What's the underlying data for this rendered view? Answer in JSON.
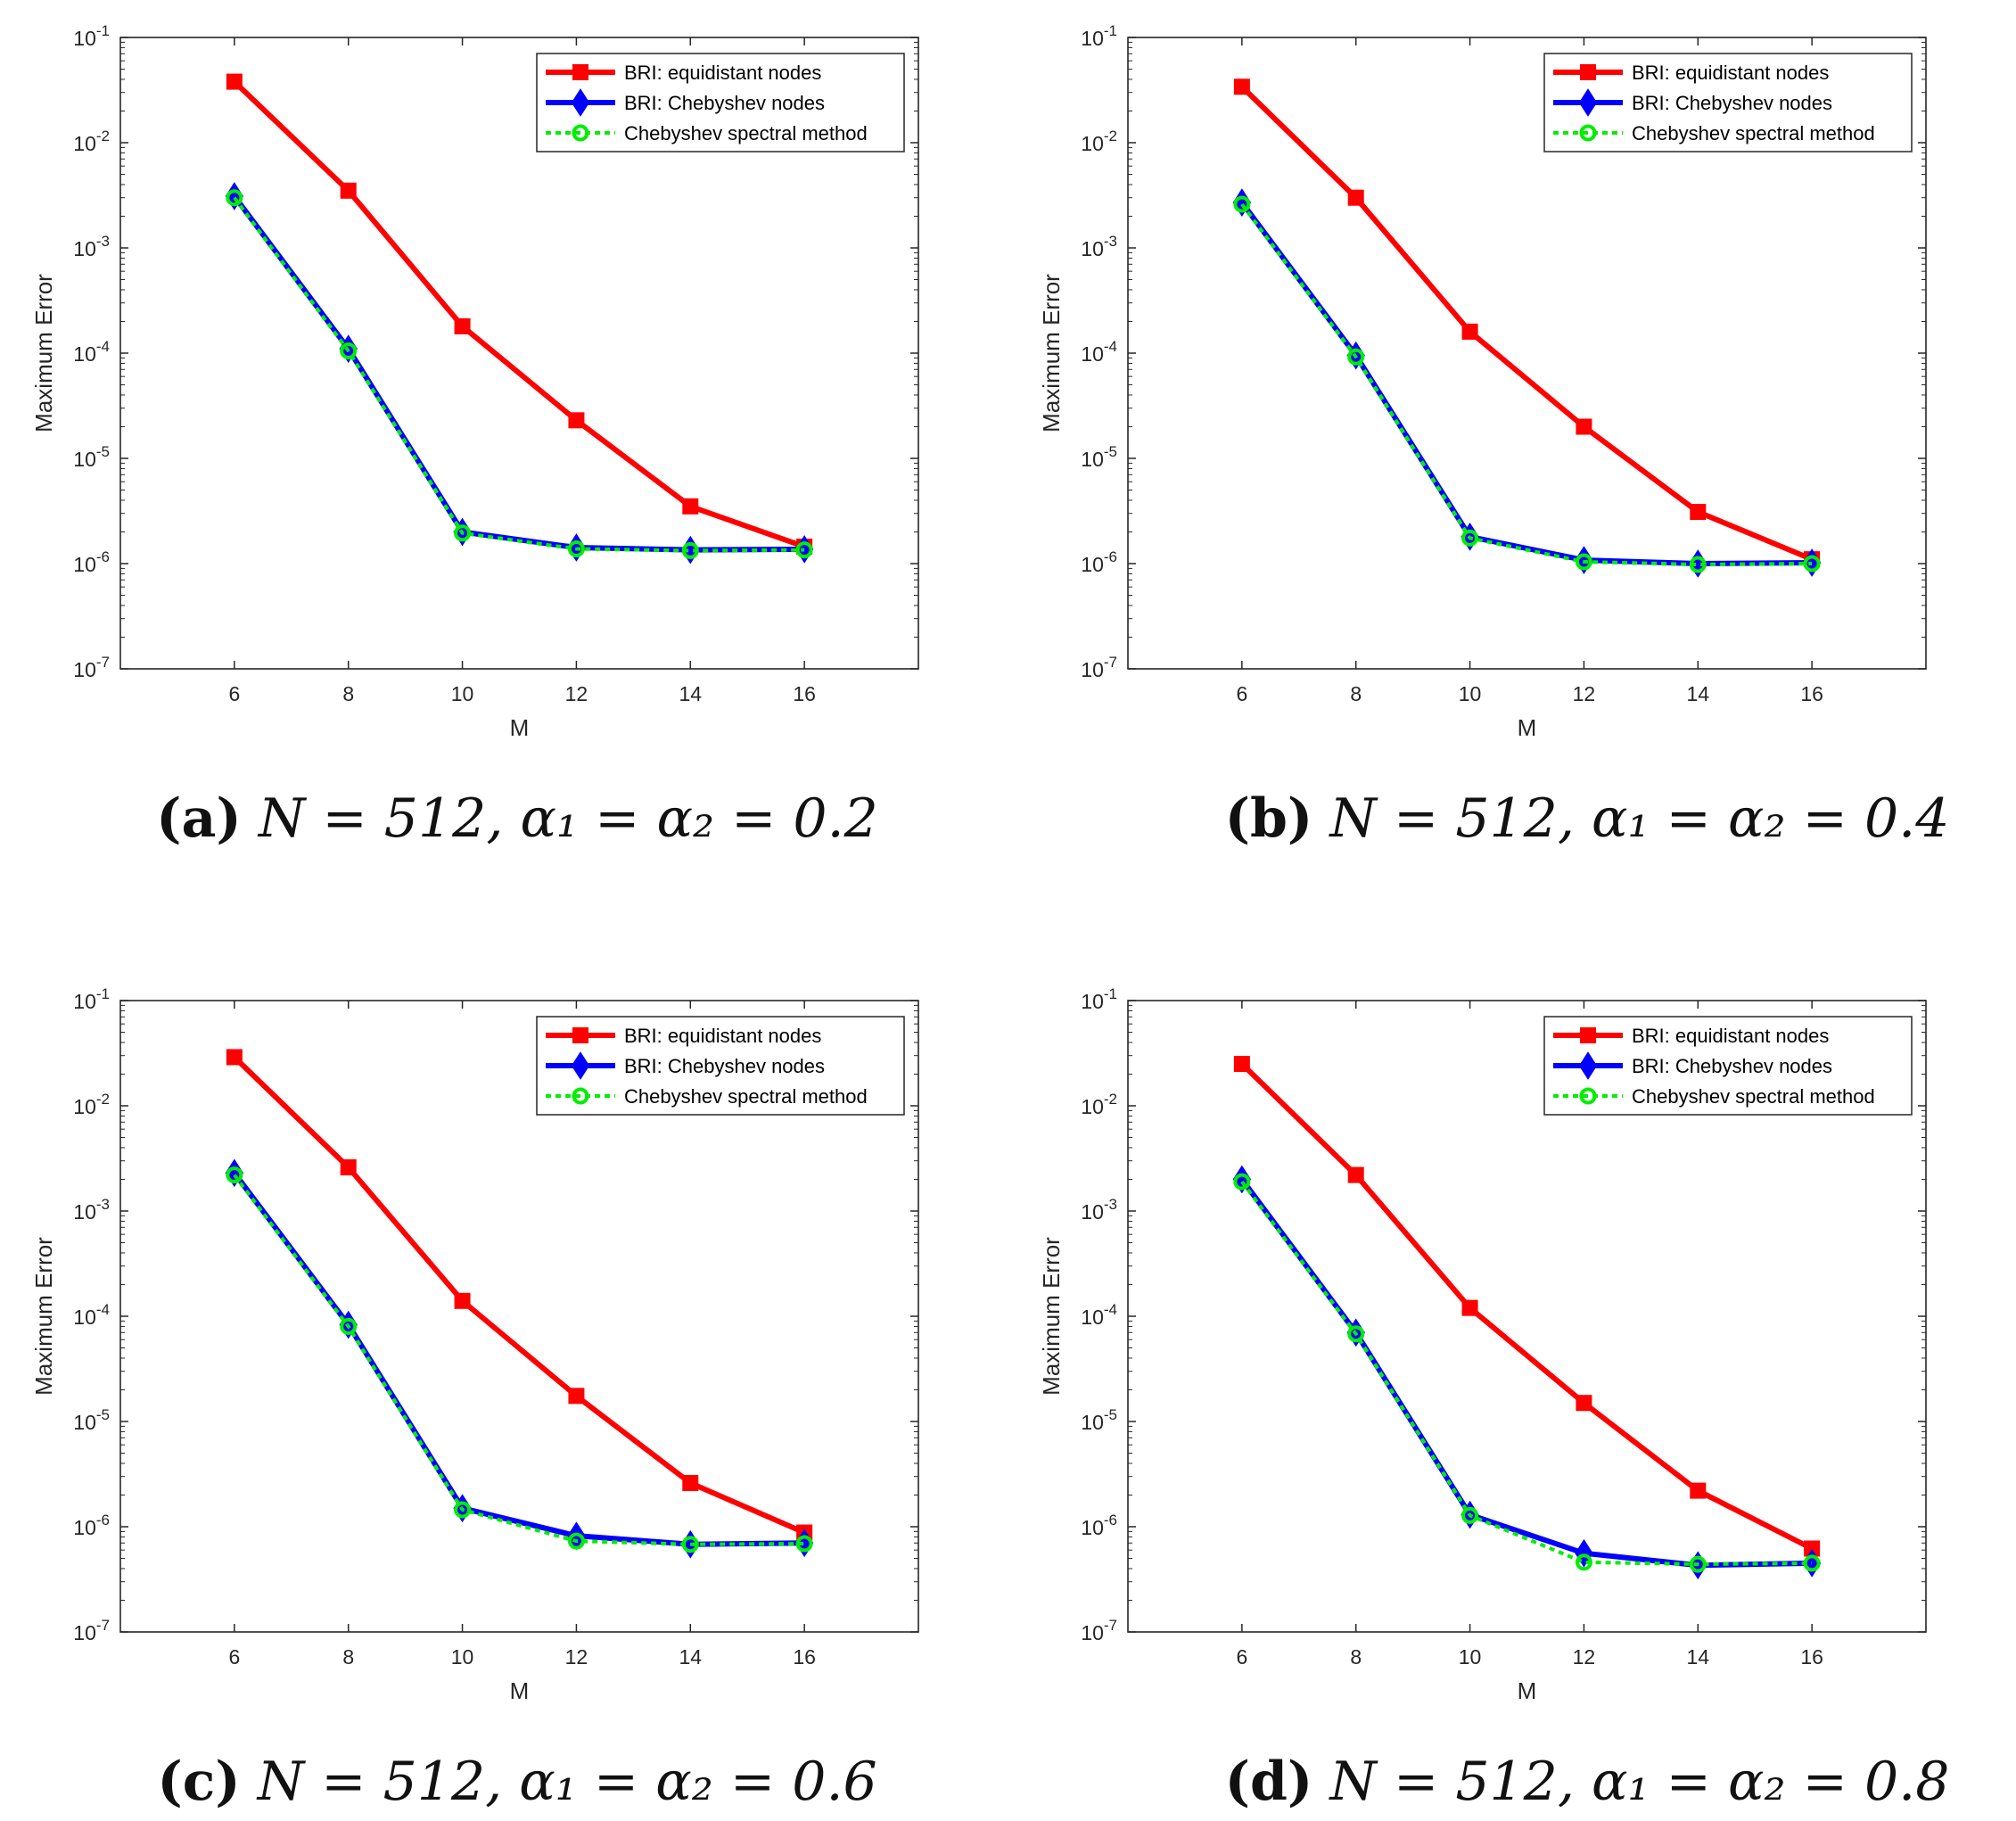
{
  "colors": {
    "equidistant": "#ff0000",
    "chebyshev_nodes": "#0000ff",
    "spectral": "#00ee00",
    "axes": "#262626"
  },
  "chart_data": [
    {
      "type": "line",
      "panel": "a",
      "caption": {
        "letter": "(a)",
        "text": "N = 512, α₁ = α₂ = 0.2"
      },
      "xlabel": "M",
      "ylabel": "Maximum Error",
      "yscale": "log",
      "xlim": [
        4,
        18
      ],
      "ylim": [
        1e-07,
        0.1
      ],
      "x": [
        6,
        8,
        10,
        12,
        14,
        16
      ],
      "xticks": [
        "6",
        "8",
        "10",
        "12",
        "14",
        "16"
      ],
      "yticks": [
        {
          "base": "10",
          "exp": "-7"
        },
        {
          "base": "10",
          "exp": "-6"
        },
        {
          "base": "10",
          "exp": "-5"
        },
        {
          "base": "10",
          "exp": "-4"
        },
        {
          "base": "10",
          "exp": "-3"
        },
        {
          "base": "10",
          "exp": "-2"
        },
        {
          "base": "10",
          "exp": "-1"
        }
      ],
      "legend_position": "top-right",
      "series": [
        {
          "name": "BRI: equidistant nodes",
          "values": [
            0.038,
            0.0035,
            0.00018,
            2.3e-05,
            3.5e-06,
            1.45e-06
          ]
        },
        {
          "name": "BRI: Chebyshev nodes",
          "values": [
            0.0031,
            0.00011,
            2e-06,
            1.42e-06,
            1.35e-06,
            1.37e-06
          ]
        },
        {
          "name": "Chebyshev spectral method",
          "values": [
            0.003,
            0.000105,
            1.95e-06,
            1.38e-06,
            1.33e-06,
            1.35e-06
          ]
        }
      ]
    },
    {
      "type": "line",
      "panel": "b",
      "caption": {
        "letter": "(b)",
        "text": "N = 512, α₁ = α₂ = 0.4"
      },
      "xlabel": "M",
      "ylabel": "Maximum Error",
      "yscale": "log",
      "xlim": [
        4,
        18
      ],
      "ylim": [
        1e-07,
        0.1
      ],
      "x": [
        6,
        8,
        10,
        12,
        14,
        16
      ],
      "xticks": [
        "6",
        "8",
        "10",
        "12",
        "14",
        "16"
      ],
      "yticks": [
        {
          "base": "10",
          "exp": "-7"
        },
        {
          "base": "10",
          "exp": "-6"
        },
        {
          "base": "10",
          "exp": "-5"
        },
        {
          "base": "10",
          "exp": "-4"
        },
        {
          "base": "10",
          "exp": "-3"
        },
        {
          "base": "10",
          "exp": "-2"
        },
        {
          "base": "10",
          "exp": "-1"
        }
      ],
      "legend_position": "top-right",
      "series": [
        {
          "name": "BRI: equidistant nodes",
          "values": [
            0.034,
            0.003,
            0.00016,
            2e-05,
            3.1e-06,
            1.1e-06
          ]
        },
        {
          "name": "BRI: Chebyshev nodes",
          "values": [
            0.0027,
            9.5e-05,
            1.8e-06,
            1.08e-06,
            1e-06,
            1.02e-06
          ]
        },
        {
          "name": "Chebyshev spectral method",
          "values": [
            0.0026,
            9.2e-05,
            1.75e-06,
            1.04e-06,
            9.8e-07,
            1e-06
          ]
        }
      ]
    },
    {
      "type": "line",
      "panel": "c",
      "caption": {
        "letter": "(c)",
        "text": "N = 512, α₁ = α₂ = 0.6"
      },
      "xlabel": "M",
      "ylabel": "Maximum Error",
      "yscale": "log",
      "xlim": [
        4,
        18
      ],
      "ylim": [
        1e-07,
        0.1
      ],
      "x": [
        6,
        8,
        10,
        12,
        14,
        16
      ],
      "xticks": [
        "6",
        "8",
        "10",
        "12",
        "14",
        "16"
      ],
      "yticks": [
        {
          "base": "10",
          "exp": "-7"
        },
        {
          "base": "10",
          "exp": "-6"
        },
        {
          "base": "10",
          "exp": "-5"
        },
        {
          "base": "10",
          "exp": "-4"
        },
        {
          "base": "10",
          "exp": "-3"
        },
        {
          "base": "10",
          "exp": "-2"
        },
        {
          "base": "10",
          "exp": "-1"
        }
      ],
      "legend_position": "top-right",
      "series": [
        {
          "name": "BRI: equidistant nodes",
          "values": [
            0.029,
            0.0026,
            0.00014,
            1.75e-05,
            2.6e-06,
            8.8e-07
          ]
        },
        {
          "name": "BRI: Chebyshev nodes",
          "values": [
            0.0023,
            8.3e-05,
            1.5e-06,
            8.2e-07,
            6.8e-07,
            7e-07
          ]
        },
        {
          "name": "Chebyshev spectral method",
          "values": [
            0.0022,
            8e-05,
            1.45e-06,
            7.3e-07,
            6.8e-07,
            6.9e-07
          ]
        }
      ]
    },
    {
      "type": "line",
      "panel": "d",
      "caption": {
        "letter": "(d)",
        "text": "N = 512, α₁ = α₂ = 0.8"
      },
      "xlabel": "M",
      "ylabel": "Maximum Error",
      "yscale": "log",
      "xlim": [
        4,
        18
      ],
      "ylim": [
        1e-07,
        0.1
      ],
      "x": [
        6,
        8,
        10,
        12,
        14,
        16
      ],
      "xticks": [
        "6",
        "8",
        "10",
        "12",
        "14",
        "16"
      ],
      "yticks": [
        {
          "base": "10",
          "exp": "-7"
        },
        {
          "base": "10",
          "exp": "-6"
        },
        {
          "base": "10",
          "exp": "-5"
        },
        {
          "base": "10",
          "exp": "-4"
        },
        {
          "base": "10",
          "exp": "-3"
        },
        {
          "base": "10",
          "exp": "-2"
        },
        {
          "base": "10",
          "exp": "-1"
        }
      ],
      "legend_position": "top-right",
      "series": [
        {
          "name": "BRI: equidistant nodes",
          "values": [
            0.025,
            0.0022,
            0.00012,
            1.5e-05,
            2.2e-06,
            6.2e-07
          ]
        },
        {
          "name": "BRI: Chebyshev nodes",
          "values": [
            0.002,
            7e-05,
            1.3e-06,
            5.6e-07,
            4.3e-07,
            4.5e-07
          ]
        },
        {
          "name": "Chebyshev spectral method",
          "values": [
            0.0019,
            6.8e-05,
            1.28e-06,
            4.6e-07,
            4.4e-07,
            4.5e-07
          ]
        }
      ]
    }
  ]
}
